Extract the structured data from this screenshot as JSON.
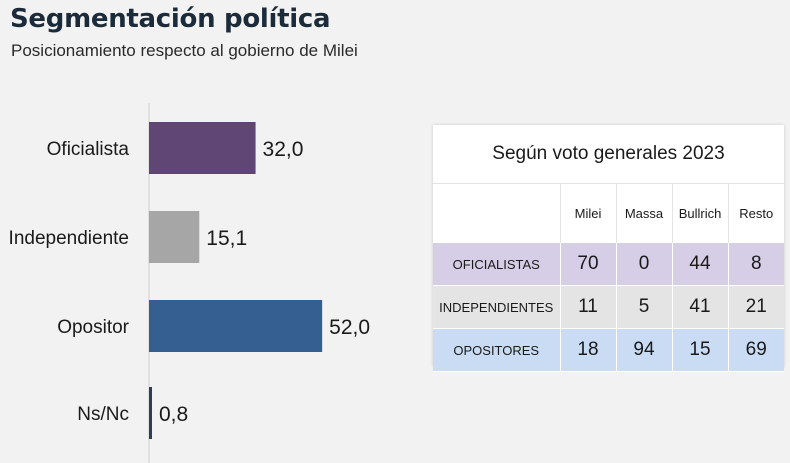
{
  "header": {
    "title": "Segmentación política",
    "subtitle": "Posicionamiento respecto al gobierno de Milei"
  },
  "chart_data": {
    "type": "bar",
    "orientation": "horizontal",
    "categories": [
      "Oficialista",
      "Independiente",
      "Opositor",
      "Ns/Nc"
    ],
    "values": [
      32.0,
      15.1,
      52.0,
      0.8
    ],
    "value_labels": [
      "32,0",
      "15,1",
      "52,0",
      "0,8"
    ],
    "colors": [
      "#5f4675",
      "#a6a6a6",
      "#355f90",
      "#2f3d59"
    ],
    "grid": false
  },
  "table": {
    "title": "Según voto generales 2023",
    "columns": [
      "",
      "Milei",
      "Massa",
      "Bullrich",
      "Resto"
    ],
    "rows": [
      {
        "label": "OFICIALISTAS",
        "values": [
          "70",
          "0",
          "44",
          "8"
        ]
      },
      {
        "label": "INDEPENDIENTES",
        "values": [
          "11",
          "5",
          "41",
          "21"
        ]
      },
      {
        "label": "OPOSITORES",
        "values": [
          "18",
          "94",
          "15",
          "69"
        ]
      }
    ]
  }
}
